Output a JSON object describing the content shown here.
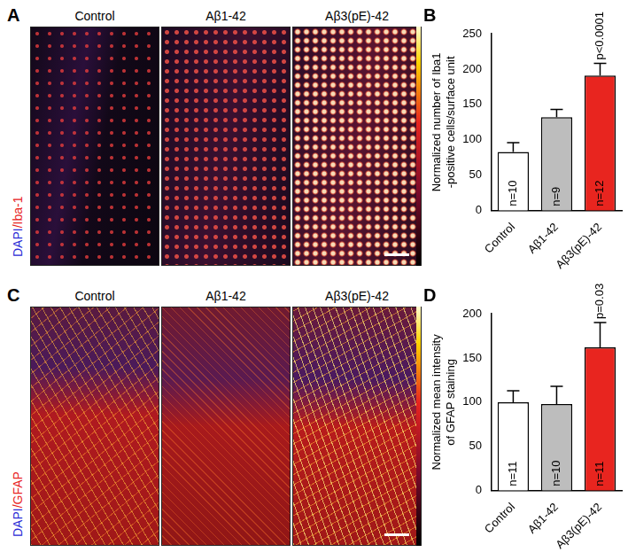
{
  "chart_data": [
    {
      "panel": "B",
      "type": "bar",
      "categories": [
        "Control",
        "Aβ1-42",
        "Aβ3(pE)-42"
      ],
      "values": [
        83,
        132,
        191
      ],
      "errors": [
        13,
        11,
        17
      ],
      "colors": [
        "#ffffff",
        "#bdbdbd",
        "#e8251f"
      ],
      "y_label": [
        "Normalized number of Iba1",
        "-positive cells/surface unit"
      ],
      "ylim": [
        0,
        250
      ],
      "yticks": [
        0,
        50,
        100,
        150,
        200,
        250
      ],
      "grid": false,
      "n_labels": [
        "n=10",
        "n=9",
        "n=12"
      ],
      "annotations": [
        {
          "category": "Aβ3(pE)-42",
          "text": "p<0.0001"
        }
      ]
    },
    {
      "panel": "D",
      "type": "bar",
      "categories": [
        "Control",
        "Aβ1-42",
        "Aβ3(pE)-42"
      ],
      "values": [
        100,
        98,
        162
      ],
      "errors": [
        13,
        20,
        28
      ],
      "colors": [
        "#ffffff",
        "#bdbdbd",
        "#e8251f"
      ],
      "y_label": [
        "Normalized mean intensity",
        "of GFAP staining"
      ],
      "ylim": [
        0,
        200
      ],
      "yticks": [
        0,
        50,
        100,
        150,
        200
      ],
      "grid": false,
      "n_labels": [
        "n=11",
        "n=10",
        "n=11"
      ],
      "annotations": [
        {
          "category": "Aβ3(pE)-42",
          "text": "p=0.0311"
        }
      ]
    }
  ],
  "image_panels": [
    {
      "panel": "A",
      "stain": [
        {
          "text": "DAPI",
          "color": "#2b2bd6"
        },
        {
          "text": "/",
          "color": "#e8251f"
        },
        {
          "text": "Iba-1",
          "color": "#e8251f"
        }
      ],
      "columns": [
        "Control",
        "Aβ1-42",
        "Aβ3(pE)-42"
      ]
    },
    {
      "panel": "C",
      "stain": [
        {
          "text": "DAPI",
          "color": "#2b2bd6"
        },
        {
          "text": "/",
          "color": "#e8251f"
        },
        {
          "text": "GFAP",
          "color": "#e8251f"
        }
      ],
      "columns": [
        "Control",
        "Aβ1-42",
        "Aβ3(pE)-42"
      ]
    }
  ]
}
